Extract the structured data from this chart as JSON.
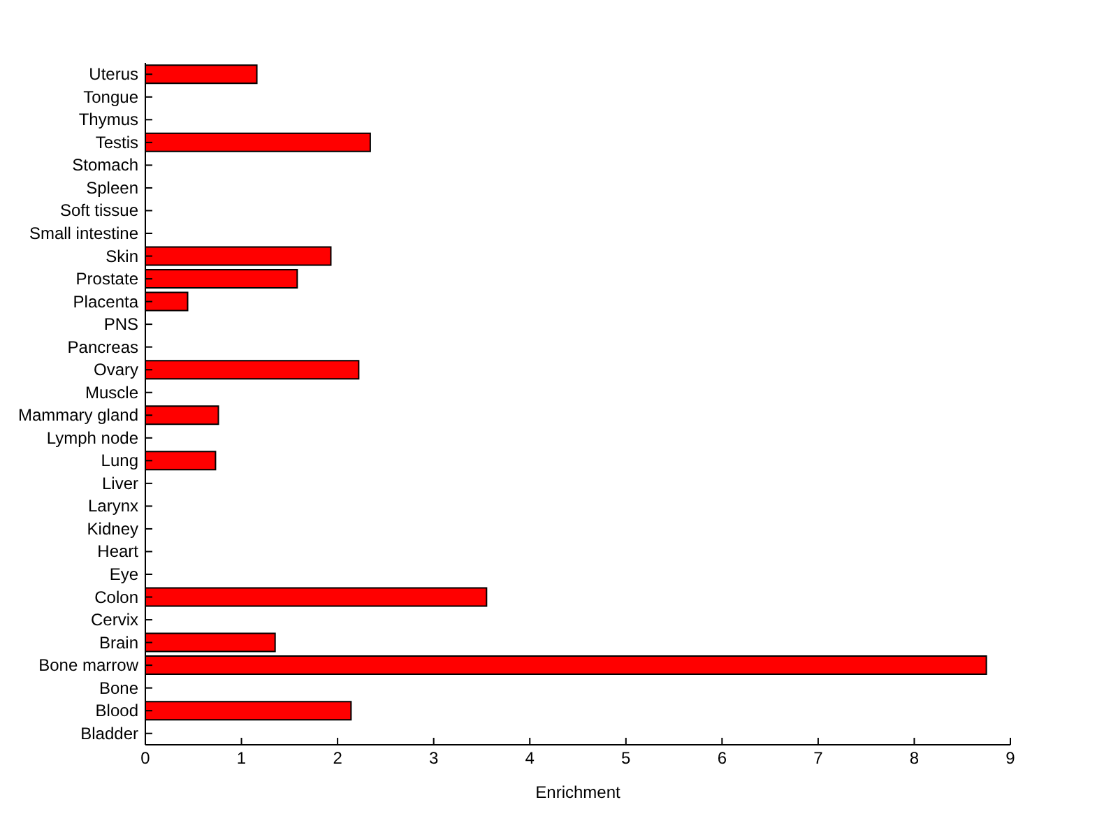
{
  "chart_data": {
    "type": "bar",
    "orientation": "horizontal",
    "xlabel": "Enrichment",
    "categories": [
      "Uterus",
      "Tongue",
      "Thymus",
      "Testis",
      "Stomach",
      "Spleen",
      "Soft tissue",
      "Small intestine",
      "Skin",
      "Prostate",
      "Placenta",
      "PNS",
      "Pancreas",
      "Ovary",
      "Muscle",
      "Mammary gland",
      "Lymph node",
      "Lung",
      "Liver",
      "Larynx",
      "Kidney",
      "Heart",
      "Eye",
      "Colon",
      "Cervix",
      "Brain",
      "Bone marrow",
      "Bone",
      "Blood",
      "Bladder"
    ],
    "values": [
      1.16,
      0,
      0,
      2.34,
      0,
      0,
      0,
      0,
      1.93,
      1.58,
      0.44,
      0,
      0,
      2.22,
      0,
      0.76,
      0,
      0.73,
      0,
      0,
      0,
      0,
      0,
      3.55,
      0,
      1.35,
      8.75,
      0,
      2.14,
      0
    ],
    "color": "#ff0000",
    "xlim": [
      0,
      9
    ],
    "xticks": [
      0,
      1,
      2,
      3,
      4,
      5,
      6,
      7,
      8,
      9
    ],
    "grid": false,
    "legend": false
  }
}
